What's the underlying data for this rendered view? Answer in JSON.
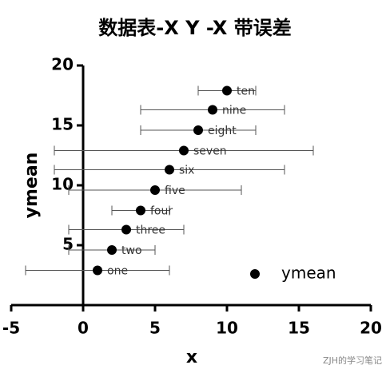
{
  "chart_data": {
    "type": "scatter",
    "title": "数据表-X Y -X 带误差",
    "xlabel": "x",
    "ylabel": "ymean",
    "xlim": [
      -5,
      20
    ],
    "xticks": [
      -5,
      0,
      5,
      10,
      15,
      20
    ],
    "ylim": [
      0,
      20
    ],
    "yticks": [
      5,
      10,
      15,
      20
    ],
    "legend": "lower right",
    "point_labels": [
      "one",
      "two",
      "three",
      "four",
      "five",
      "six",
      "seven",
      "eight",
      "nine",
      "ten"
    ],
    "series": [
      {
        "name": "ymean",
        "color": "#000000",
        "x": [
          1,
          2,
          3,
          4,
          5,
          6,
          7,
          8,
          9,
          10
        ],
        "values": [
          2.9,
          4.6,
          6.3,
          7.9,
          9.6,
          11.3,
          12.9,
          14.6,
          16.3,
          17.9
        ],
        "xerr": [
          5,
          3,
          4,
          2,
          6,
          8,
          9,
          4,
          5,
          2
        ]
      }
    ],
    "watermark": "ZJH的学习笔记"
  }
}
